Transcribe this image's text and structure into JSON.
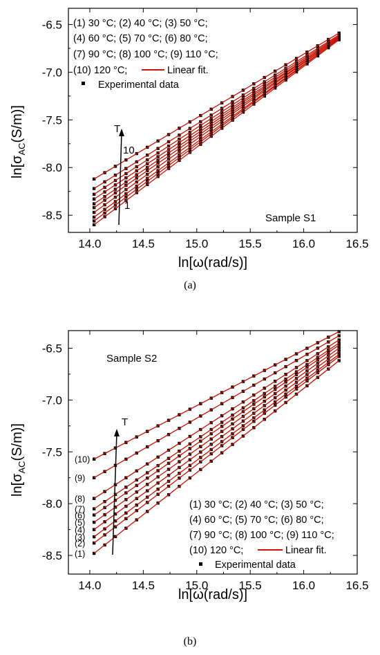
{
  "colors": {
    "line": "#cc1100",
    "marker": "#000000",
    "frame": "#000000"
  },
  "chart_data": [
    {
      "type": "scatter",
      "panel_caption": "(a)",
      "sample_label": "Sample S1",
      "xlabel": "ln[ω(rad/s)]",
      "ylabel": "ln[σAC(S/m)]",
      "ylabel_main": "ln[σ",
      "ylabel_sub": "AC",
      "ylabel_end": "(S/m)]",
      "xlim": [
        13.8,
        16.5
      ],
      "ylim": [
        -8.68,
        -6.33
      ],
      "xticks": [
        "14.0",
        "14.5",
        "15.0",
        "15.5",
        "16.0",
        "16.5"
      ],
      "yticks": [
        "-6.5",
        "-7.0",
        "-7.5",
        "-8.0",
        "-8.5"
      ],
      "ytick_values": [
        -6.5,
        -7.0,
        -7.5,
        -8.0,
        -8.5
      ],
      "xtick_values": [
        14.0,
        14.5,
        15.0,
        15.5,
        16.0,
        16.5
      ],
      "legend_lines": [
        "(1) 30 °C; (2) 40 °C; (3) 50 °C;",
        "(4) 60 °C; (5) 70 °C; (6) 80 °C;",
        "(7) 90 °C; (8) 100 °C; (9) 110 °C;",
        "(10) 120 °C;"
      ],
      "legend_fit": "Linear fit.",
      "legend_exp": "Experimental data",
      "arrow_label": "T",
      "arrow_top_label": "10",
      "arrow_bottom_label": "1",
      "x_range": [
        14.04,
        16.33
      ],
      "series": [
        {
          "name": "30 °C",
          "start": [
            14.04,
            -8.6
          ],
          "end": [
            16.33,
            -6.66
          ]
        },
        {
          "name": "40 °C",
          "start": [
            14.04,
            -8.56
          ],
          "end": [
            16.33,
            -6.65
          ]
        },
        {
          "name": "50 °C",
          "start": [
            14.04,
            -8.52
          ],
          "end": [
            16.33,
            -6.65
          ]
        },
        {
          "name": "60 °C",
          "start": [
            14.04,
            -8.47
          ],
          "end": [
            16.33,
            -6.64
          ]
        },
        {
          "name": "70 °C",
          "start": [
            14.04,
            -8.42
          ],
          "end": [
            16.33,
            -6.64
          ]
        },
        {
          "name": "80 °C",
          "start": [
            14.04,
            -8.38
          ],
          "end": [
            16.33,
            -6.63
          ]
        },
        {
          "name": "90 °C",
          "start": [
            14.04,
            -8.33
          ],
          "end": [
            16.33,
            -6.63
          ]
        },
        {
          "name": "100 °C",
          "start": [
            14.04,
            -8.28
          ],
          "end": [
            16.33,
            -6.62
          ]
        },
        {
          "name": "110 °C",
          "start": [
            14.04,
            -8.22
          ],
          "end": [
            16.33,
            -6.61
          ]
        },
        {
          "name": "120 °C",
          "start": [
            14.04,
            -8.12
          ],
          "end": [
            16.33,
            -6.59
          ]
        }
      ]
    },
    {
      "type": "scatter",
      "panel_caption": "(b)",
      "sample_label": "Sample S2",
      "xlabel": "ln[ω(rad/s)]",
      "ylabel": "ln[σAC(S/m)]",
      "ylabel_main": "ln[σ",
      "ylabel_sub": "AC",
      "ylabel_end": "(S/m)]",
      "xlim": [
        13.8,
        16.5
      ],
      "ylim": [
        -8.68,
        -6.33
      ],
      "xticks": [
        "14.0",
        "14.5",
        "15.0",
        "15.5",
        "16.0",
        "16.5"
      ],
      "yticks": [
        "-6.5",
        "-7.0",
        "-7.5",
        "-8.0",
        "-8.5"
      ],
      "ytick_values": [
        -6.5,
        -7.0,
        -7.5,
        -8.0,
        -8.5
      ],
      "xtick_values": [
        14.0,
        14.5,
        15.0,
        15.5,
        16.0,
        16.5
      ],
      "legend_lines": [
        "(1) 30 °C; (2) 40 °C; (3) 50 °C;",
        "(4) 60 °C; (5) 70 °C; (6) 80 °C;",
        "(7) 90 °C; (8) 100 °C; (9) 110 °C;",
        "(10) 120 °C;"
      ],
      "legend_fit": "Linear fit.",
      "legend_exp": "Experimental data",
      "arrow_label": "T",
      "curve_labels": [
        "(1)",
        "(2)",
        "(3)",
        "(4)",
        "(5)",
        "(6)",
        "(7)",
        "(8)",
        "(9)",
        "(10)"
      ],
      "x_range": [
        14.04,
        16.33
      ],
      "series": [
        {
          "name": "30 °C",
          "start": [
            14.04,
            -8.48
          ],
          "end": [
            16.33,
            -6.62
          ]
        },
        {
          "name": "40 °C",
          "start": [
            14.04,
            -8.38
          ],
          "end": [
            16.33,
            -6.58
          ]
        },
        {
          "name": "50 °C",
          "start": [
            14.04,
            -8.32
          ],
          "end": [
            16.33,
            -6.56
          ]
        },
        {
          "name": "60 °C",
          "start": [
            14.04,
            -8.25
          ],
          "end": [
            16.33,
            -6.53
          ]
        },
        {
          "name": "70 °C",
          "start": [
            14.04,
            -8.18
          ],
          "end": [
            16.33,
            -6.5
          ]
        },
        {
          "name": "80 °C",
          "start": [
            14.04,
            -8.11
          ],
          "end": [
            16.33,
            -6.47
          ]
        },
        {
          "name": "90 °C",
          "start": [
            14.04,
            -8.05
          ],
          "end": [
            16.33,
            -6.45
          ]
        },
        {
          "name": "100 °C",
          "start": [
            14.04,
            -7.95
          ],
          "end": [
            16.33,
            -6.42
          ]
        },
        {
          "name": "110 °C",
          "start": [
            14.04,
            -7.75
          ],
          "end": [
            16.33,
            -6.38
          ]
        },
        {
          "name": "120 °C",
          "start": [
            14.04,
            -7.57
          ],
          "end": [
            16.33,
            -6.34
          ]
        }
      ]
    }
  ]
}
